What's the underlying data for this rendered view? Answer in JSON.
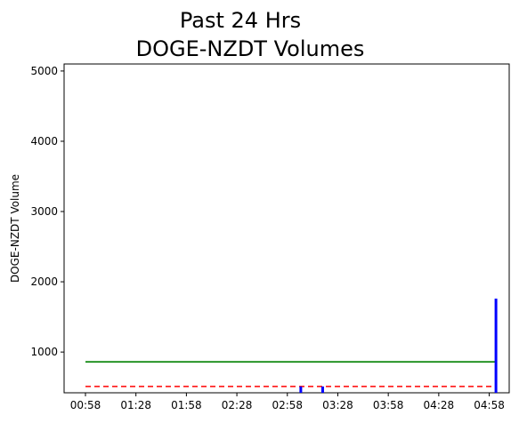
{
  "chart_data": {
    "type": "bar",
    "title_line1": "Past 24 Hrs",
    "title_line2": "DOGE-NZDT Volumes",
    "xlabel": "",
    "ylabel": "DOGE-NZDT Volume",
    "x_range_minutes": [
      0,
      245
    ],
    "x_tick_values_minutes": [
      0,
      30,
      60,
      90,
      120,
      150,
      180,
      210,
      240
    ],
    "x_tick_labels": [
      "00:58",
      "01:28",
      "01:58",
      "02:28",
      "02:58",
      "03:28",
      "03:58",
      "04:28",
      "04:58"
    ],
    "ylim": [
      420,
      5100
    ],
    "y_ticks": [
      1000,
      2000,
      3000,
      4000,
      5000
    ],
    "grid": false,
    "colors": {
      "bars": "#0000ff",
      "green_line": "#008000",
      "red_dashed": "#ff0000"
    },
    "bars": [
      {
        "x_minutes": 128,
        "value": 510
      },
      {
        "x_minutes": 141,
        "value": 510
      },
      {
        "x_minutes": 244,
        "value": 1760
      }
    ],
    "green_line": {
      "value": 860,
      "x_from_minutes": 0,
      "x_to_minutes": 244
    },
    "red_dashed_line": {
      "value": 510,
      "x_from_minutes": 0,
      "x_to_minutes": 244
    }
  }
}
